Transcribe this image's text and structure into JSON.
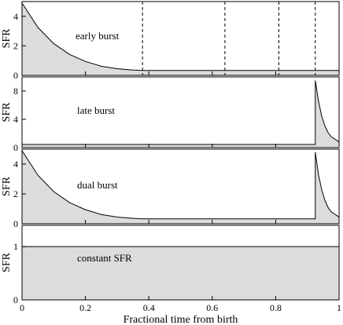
{
  "chart_data": {
    "type": "area",
    "xlabel": "Fractional time from birth",
    "xlim": [
      0,
      1
    ],
    "xticks": [
      0,
      0.2,
      0.4,
      0.6,
      0.8,
      1
    ],
    "xtick_labels": [
      "0",
      "0.2",
      "0.4",
      "0.6",
      "0.8",
      "1"
    ],
    "grid": false,
    "panels": [
      {
        "id": "early",
        "annotation": "early burst",
        "ylabel": "SFR",
        "ylim": [
          0,
          5
        ],
        "yticks": [
          0,
          2,
          4
        ],
        "ytick_labels": [
          "0",
          "2",
          "4"
        ],
        "series": [
          {
            "x": [
              0,
              0.05,
              0.1,
              0.15,
              0.2,
              0.25,
              0.3,
              0.35,
              0.38,
              1.0
            ],
            "y": [
              4.9,
              3.25,
              2.15,
              1.42,
              0.94,
              0.62,
              0.45,
              0.36,
              0.33,
              0.33
            ]
          }
        ],
        "vlines": [
          0.38,
          0.64,
          0.81,
          0.925
        ]
      },
      {
        "id": "late",
        "annotation": "late burst",
        "ylabel": "SFR",
        "ylim": [
          0,
          10
        ],
        "yticks": [
          0,
          4,
          8
        ],
        "ytick_labels": [
          "0",
          "4",
          "8"
        ],
        "series": [
          {
            "x": [
              0,
              0.925,
              0.925,
              0.935,
              0.945,
              0.955,
              0.965,
              0.975,
              1.0
            ],
            "y": [
              0.45,
              0.45,
              9.5,
              6.6,
              4.5,
              3.1,
              2.15,
              1.55,
              0.8
            ]
          }
        ]
      },
      {
        "id": "dual",
        "annotation": "dual burst",
        "ylabel": "SFR",
        "ylim": [
          0,
          5
        ],
        "yticks": [
          0,
          2,
          4
        ],
        "ytick_labels": [
          "0",
          "2",
          "4"
        ],
        "series": [
          {
            "x": [
              0,
              0.05,
              0.1,
              0.15,
              0.2,
              0.25,
              0.3,
              0.35,
              0.38,
              0.925,
              0.925,
              0.935,
              0.945,
              0.955,
              0.965,
              0.975,
              1.0
            ],
            "y": [
              4.9,
              3.25,
              2.15,
              1.42,
              0.94,
              0.62,
              0.45,
              0.36,
              0.33,
              0.33,
              4.8,
              3.3,
              2.3,
              1.6,
              1.1,
              0.8,
              0.45
            ]
          }
        ]
      },
      {
        "id": "constant",
        "annotation": "constant SFR",
        "ylabel": "SFR",
        "ylim": [
          0,
          1.4
        ],
        "yticks": [
          0,
          1
        ],
        "ytick_labels": [
          "0",
          "1"
        ],
        "series": [
          {
            "x": [
              0,
              1.0
            ],
            "y": [
              1.0,
              1.0
            ]
          }
        ]
      }
    ]
  }
}
